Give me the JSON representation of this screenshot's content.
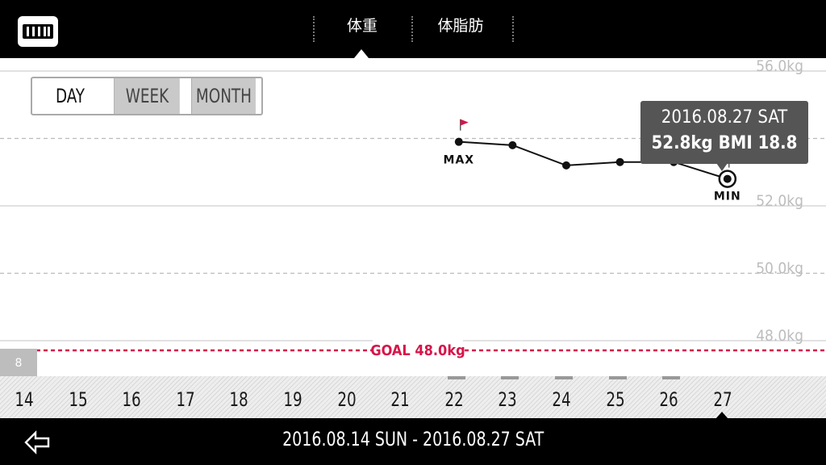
{
  "header": {
    "tabs": [
      {
        "label": "体重",
        "active": true
      },
      {
        "label": "体脂肪",
        "active": false
      }
    ]
  },
  "period_selector": {
    "options": [
      "DAY",
      "WEEK",
      "MONTH"
    ],
    "selected": "DAY"
  },
  "chart_data": {
    "type": "line",
    "x": [
      "22",
      "23",
      "24",
      "25",
      "26",
      "27"
    ],
    "series": [
      {
        "values": [
          53.9,
          53.8,
          53.2,
          53.3,
          53.3,
          52.8
        ]
      }
    ],
    "y_ticks": [
      "56.0kg",
      "54.0kg",
      "52.0kg",
      "50.0kg",
      "48.0kg"
    ],
    "ylim": [
      47.0,
      56.0
    ],
    "goal": {
      "label": "GOAL 48.0kg",
      "value": 48.0,
      "color": "#d6154a"
    },
    "max_label": "MAX",
    "min_label": "MIN",
    "tooltip": {
      "date": "2016.08.27 SAT",
      "value": "52.8kg  BMI 18.8"
    },
    "left_edge_value": "8"
  },
  "day_scale": {
    "days": [
      "14",
      "15",
      "16",
      "17",
      "18",
      "19",
      "20",
      "21",
      "22",
      "23",
      "24",
      "25",
      "26",
      "27"
    ],
    "selected": "27"
  },
  "footer": {
    "date_range": "2016.08.14 SUN - 2016.08.27 SAT",
    "back_icon": "back-arrow-icon"
  },
  "colors": {
    "goal": "#d6154a",
    "flag": "#d6154a",
    "background": "#000000",
    "chart_bg": "#ffffff"
  }
}
